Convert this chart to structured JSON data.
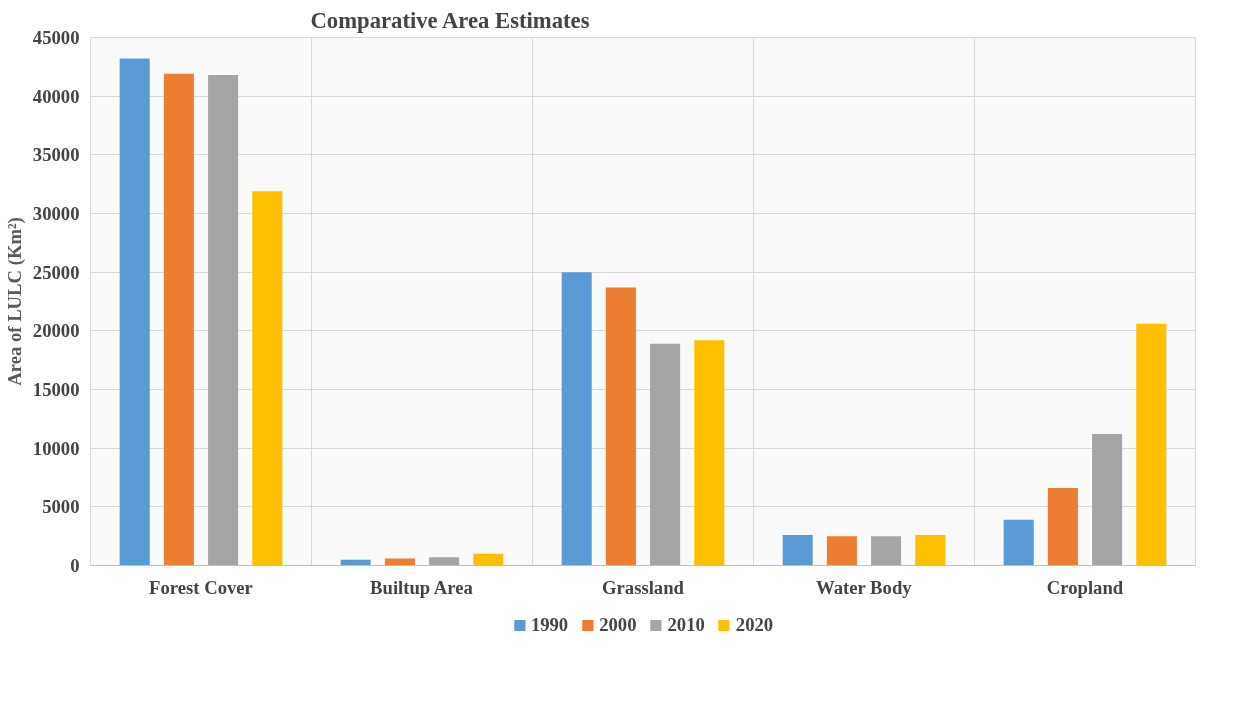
{
  "chart_data": {
    "type": "bar",
    "title": "Comparative Area Estimates",
    "ylabel": "Area of LULC (Km²)",
    "categories": [
      "Forest Cover",
      "Builtup Area",
      "Grassland",
      "Water Body",
      "Cropland"
    ],
    "series": [
      {
        "name": "1990",
        "color": "#5b9bd5",
        "values": [
          43200,
          500,
          25000,
          2600,
          3900
        ]
      },
      {
        "name": "2000",
        "color": "#ed7d31",
        "values": [
          41900,
          600,
          23700,
          2500,
          6600
        ]
      },
      {
        "name": "2010",
        "color": "#a5a5a5",
        "values": [
          41800,
          700,
          18900,
          2500,
          11200
        ]
      },
      {
        "name": "2020",
        "color": "#ffc000",
        "values": [
          31900,
          1000,
          19200,
          2600,
          20600
        ]
      }
    ],
    "ylim": [
      0,
      45000
    ],
    "yticks": [
      0,
      5000,
      10000,
      15000,
      20000,
      25000,
      30000,
      35000,
      40000,
      45000
    ],
    "grid": true,
    "legend": "bottom"
  }
}
